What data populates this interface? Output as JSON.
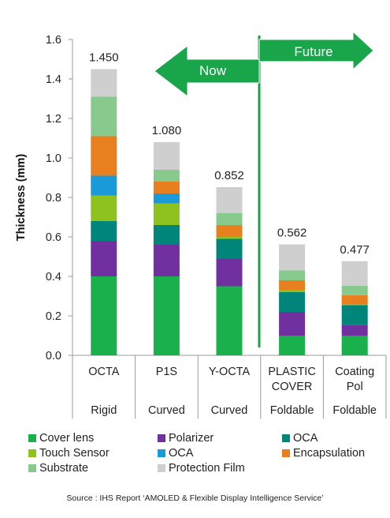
{
  "chart_data": {
    "type": "bar",
    "stacked": true,
    "ylabel": "Thickness (mm)",
    "ylim": [
      0,
      1.6
    ],
    "yticks": [
      "0.0",
      "0.2",
      "0.4",
      "0.6",
      "0.8",
      "1.0",
      "1.2",
      "1.4",
      "1.6"
    ],
    "ytick_values": [
      0,
      0.2,
      0.4,
      0.6,
      0.8,
      1.0,
      1.2,
      1.4,
      1.6
    ],
    "grid": false,
    "legend_placement": "bottom",
    "categories": [
      "OCTA",
      "P1S",
      "Y-OCTA",
      "PLASTIC COVER",
      "Coating Pol"
    ],
    "category_lines": [
      [
        "OCTA"
      ],
      [
        "P1S"
      ],
      [
        "Y-OCTA"
      ],
      [
        "PLASTIC",
        "COVER"
      ],
      [
        "Coating",
        "Pol"
      ]
    ],
    "form_factors": [
      "Rigid",
      "Curved",
      "Curved",
      "Foldable",
      "Foldable"
    ],
    "totals": [
      "1.450",
      "1.080",
      "0.852",
      "0.562",
      "0.477"
    ],
    "series": [
      {
        "name": "Cover lens",
        "color": "#1ab04b",
        "values": [
          0.4,
          0.4,
          0.35,
          0.1,
          0.1
        ]
      },
      {
        "name": "Polarizer",
        "color": "#7030a0",
        "values": [
          0.18,
          0.16,
          0.14,
          0.12,
          0.055
        ]
      },
      {
        "name": "OCA",
        "color": "#00857a",
        "values": [
          0.1,
          0.1,
          0.1,
          0.1,
          0.1
        ]
      },
      {
        "name": "Touch Sensor",
        "color": "#8dc21f",
        "values": [
          0.13,
          0.11,
          0.01,
          0.01,
          0.005
        ]
      },
      {
        "name": "OCA",
        "color": "#1a9ad6",
        "values": [
          0.1,
          0.05,
          0.0,
          0.0,
          0.0
        ]
      },
      {
        "name": "Encapsulation",
        "color": "#e98020",
        "values": [
          0.2,
          0.06,
          0.06,
          0.05,
          0.045
        ]
      },
      {
        "name": "Substrate",
        "color": "#88c98e",
        "values": [
          0.2,
          0.06,
          0.06,
          0.05,
          0.047
        ]
      },
      {
        "name": "Protection Film",
        "color": "#cfcfcf",
        "values": [
          0.14,
          0.14,
          0.132,
          0.132,
          0.125
        ]
      }
    ],
    "annotations": {
      "now": "Now",
      "future": "Future"
    },
    "arrow_color": "#19a54a"
  },
  "legend": {
    "items": [
      {
        "label": "Cover lens",
        "color": "#1ab04b"
      },
      {
        "label": "Polarizer",
        "color": "#7030a0"
      },
      {
        "label": "OCA",
        "color": "#00857a"
      },
      {
        "label": "Touch Sensor",
        "color": "#8dc21f"
      },
      {
        "label": "OCA",
        "color": "#1a9ad6"
      },
      {
        "label": "Encapsulation",
        "color": "#e98020"
      },
      {
        "label": "Substrate",
        "color": "#88c98e"
      },
      {
        "label": "Protection Film",
        "color": "#cfcfcf"
      }
    ]
  },
  "source": "Source : IHS Report ‘AMOLED & Flexible Display Intelligence Service’"
}
